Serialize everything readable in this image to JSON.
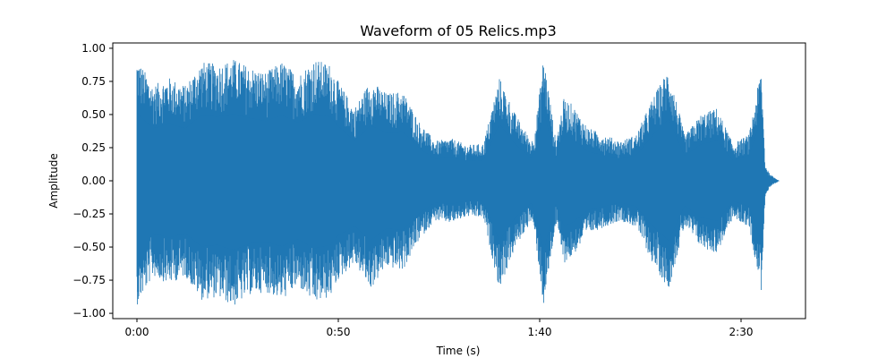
{
  "chart_data": {
    "type": "line",
    "title": "Waveform of 05 Relics.mp3",
    "xlabel": "Time (s)",
    "ylabel": "Amplitude",
    "xlim": [
      -6,
      166
    ],
    "ylim": [
      -1.04,
      1.04
    ],
    "x_ticks": [
      {
        "value": 0,
        "label": "0:00"
      },
      {
        "value": 50,
        "label": "0:50"
      },
      {
        "value": 100,
        "label": "1:40"
      },
      {
        "value": 150,
        "label": "2:30"
      }
    ],
    "y_ticks": [
      {
        "value": 1.0,
        "label": "1.00"
      },
      {
        "value": 0.75,
        "label": "0.75"
      },
      {
        "value": 0.5,
        "label": "0.50"
      },
      {
        "value": 0.25,
        "label": "0.25"
      },
      {
        "value": 0.0,
        "label": "0.00"
      },
      {
        "value": -0.25,
        "label": "−0.25"
      },
      {
        "value": -0.5,
        "label": "−0.50"
      },
      {
        "value": -0.75,
        "label": "−0.75"
      },
      {
        "value": -1.0,
        "label": "−1.00"
      }
    ],
    "grid": false,
    "duration_s": 159.5,
    "series": [
      {
        "color": "#1f77b4",
        "envelope": {
          "time_s": [
            0,
            4,
            8,
            12,
            16,
            20,
            24,
            28,
            32,
            36,
            40,
            44,
            48,
            50,
            54,
            58,
            62,
            66,
            70,
            74,
            78,
            82,
            86,
            90,
            94,
            98,
            99,
            101,
            104,
            106,
            108,
            112,
            116,
            120,
            124,
            128,
            132,
            136,
            140,
            144,
            148,
            152,
            155,
            156,
            157,
            158,
            159,
            159.5
          ],
          "max": [
            0.93,
            0.72,
            0.78,
            0.72,
            0.9,
            0.88,
            0.92,
            0.86,
            0.82,
            0.9,
            0.8,
            0.92,
            0.88,
            0.75,
            0.55,
            0.76,
            0.66,
            0.68,
            0.45,
            0.3,
            0.32,
            0.27,
            0.28,
            0.78,
            0.5,
            0.3,
            0.42,
            0.95,
            0.3,
            0.62,
            0.58,
            0.4,
            0.35,
            0.3,
            0.35,
            0.62,
            0.85,
            0.34,
            0.5,
            0.55,
            0.28,
            0.35,
            0.85,
            0.12,
            0.06,
            0.03,
            0.01,
            0.0
          ],
          "min": [
            -0.94,
            -0.72,
            -0.78,
            -0.72,
            -0.9,
            -0.88,
            -0.95,
            -0.86,
            -0.84,
            -0.9,
            -0.8,
            -0.93,
            -0.88,
            -0.75,
            -0.62,
            -0.82,
            -0.65,
            -0.68,
            -0.45,
            -0.3,
            -0.32,
            -0.27,
            -0.28,
            -0.82,
            -0.5,
            -0.3,
            -0.45,
            -0.96,
            -0.32,
            -0.62,
            -0.58,
            -0.4,
            -0.35,
            -0.3,
            -0.35,
            -0.62,
            -0.82,
            -0.34,
            -0.5,
            -0.55,
            -0.28,
            -0.35,
            -0.83,
            -0.12,
            -0.06,
            -0.03,
            -0.01,
            0.0
          ]
        }
      }
    ]
  }
}
